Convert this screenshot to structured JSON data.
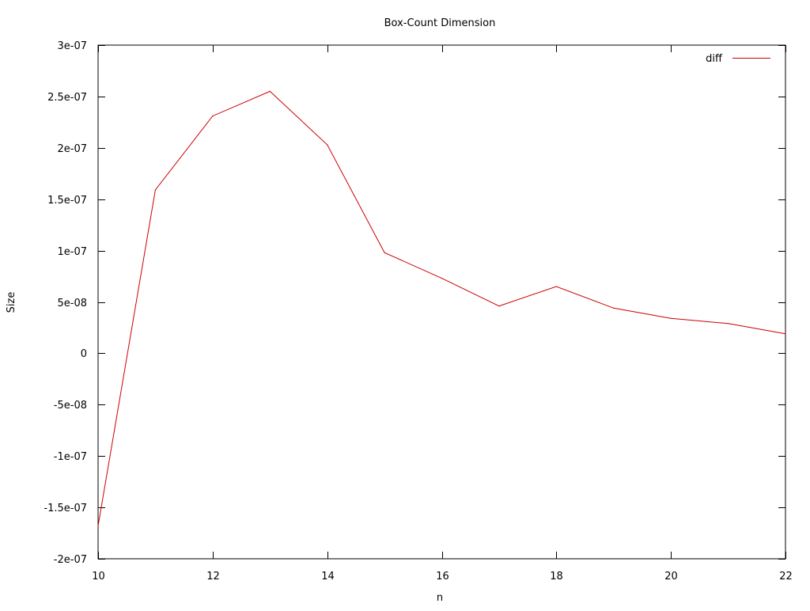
{
  "chart_data": {
    "type": "line",
    "title": "Box-Count Dimension",
    "xlabel": "n",
    "ylabel": "Size",
    "xlim": [
      10,
      22
    ],
    "ylim": [
      -2e-07,
      3e-07
    ],
    "x_ticks": [
      10,
      12,
      14,
      16,
      18,
      20,
      22
    ],
    "x_tick_labels": [
      "10",
      "12",
      "14",
      "16",
      "18",
      "20",
      "22"
    ],
    "y_ticks": [
      -2e-07,
      -1.5e-07,
      -1e-07,
      -5e-08,
      0,
      5e-08,
      1e-07,
      1.5e-07,
      2e-07,
      2.5e-07,
      3e-07
    ],
    "y_tick_labels": [
      "-2e-07",
      "-1.5e-07",
      "-1e-07",
      "-5e-08",
      "0",
      "5e-08",
      "1e-07",
      "1.5e-07",
      "2e-07",
      "2.5e-07",
      "3e-07"
    ],
    "grid": false,
    "legend_position": "top-right",
    "series": [
      {
        "name": "diff",
        "color": "#cc0000",
        "x": [
          10,
          11,
          12,
          13,
          14,
          15,
          16,
          17,
          18,
          19,
          20,
          21,
          22
        ],
        "values": [
          -1.68e-07,
          1.59e-07,
          2.31e-07,
          2.55e-07,
          2.03e-07,
          9.8e-08,
          7.3e-08,
          4.6e-08,
          6.5e-08,
          4.4e-08,
          3.4e-08,
          2.9e-08,
          1.9e-08
        ]
      }
    ]
  }
}
